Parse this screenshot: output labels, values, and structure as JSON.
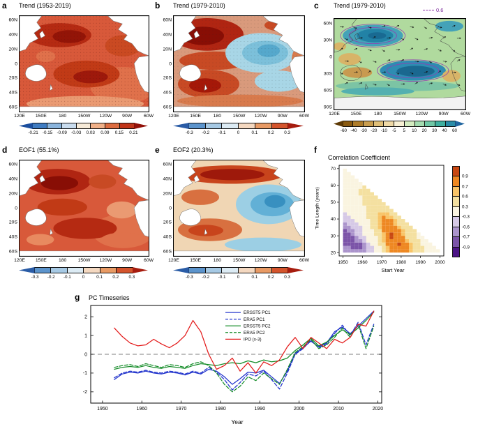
{
  "panels": {
    "a": {
      "label": "a",
      "title": "Trend (1953-2019)",
      "lat_ticks": [
        "60N",
        "40N",
        "20N",
        "0",
        "20S",
        "40S",
        "60S"
      ],
      "lon_ticks": [
        "120E",
        "150E",
        "180",
        "150W",
        "120W",
        "90W",
        "60W"
      ],
      "colorbar": {
        "orientation": "horizontal",
        "ticks": [
          "-0.21",
          "-0.15",
          "-0.09",
          "-0.03",
          "0.03",
          "0.09",
          "0.15",
          "0.21"
        ],
        "colors": [
          "#1c4f9e",
          "#3f7cc2",
          "#8ab4dc",
          "#c9dcee",
          "#f6ead8",
          "#f0b088",
          "#dc6c40",
          "#c03418",
          "#921108"
        ]
      }
    },
    "b": {
      "label": "b",
      "title": "Trend (1979-2010)",
      "lat_ticks": [
        "60N",
        "40N",
        "20N",
        "0",
        "20S",
        "40S",
        "60S"
      ],
      "lon_ticks": [
        "120E",
        "150E",
        "180",
        "150W",
        "120W",
        "90W",
        "60W"
      ],
      "colorbar": {
        "orientation": "horizontal",
        "ticks": [
          "-0.3",
          "-0.2",
          "-0.1",
          "0",
          "0.1",
          "0.2",
          "0.3"
        ],
        "colors": [
          "#2a5ca6",
          "#5c94cc",
          "#a6c9e4",
          "#dcebf4",
          "#f4d8c0",
          "#e89a64",
          "#d4542c",
          "#a61c0e"
        ]
      }
    },
    "c": {
      "label": "c",
      "title": "Trend (1979-2010)",
      "vector_scale": "0.6",
      "lat_ticks": [
        "60N",
        "30N",
        "0",
        "30S",
        "60S",
        "90S"
      ],
      "lon_ticks": [
        "120E",
        "150E",
        "180",
        "150W",
        "120W",
        "90W",
        "60W"
      ],
      "colorbar": {
        "orientation": "horizontal",
        "ticks": [
          "-60",
          "-40",
          "-30",
          "-20",
          "-10",
          "-5",
          "5",
          "10",
          "20",
          "30",
          "40",
          "60"
        ],
        "colors": [
          "#5e3a06",
          "#8a5a10",
          "#ae7c2a",
          "#c99d4e",
          "#e0bf78",
          "#efd9a6",
          "#f8f0d4",
          "#d4ecc0",
          "#a4dcb0",
          "#70c8a6",
          "#40b0a0",
          "#2a8ca8",
          "#2166a0"
        ]
      }
    },
    "d": {
      "label": "d",
      "title": "EOF1 (55.1%)",
      "lat_ticks": [
        "60N",
        "40N",
        "20N",
        "0",
        "20S",
        "40S",
        "60S"
      ],
      "lon_ticks": [
        "120E",
        "150E",
        "180",
        "150W",
        "120W",
        "90W",
        "60W"
      ],
      "colorbar": {
        "orientation": "horizontal",
        "ticks": [
          "-0.3",
          "-0.2",
          "-0.1",
          "0",
          "0.1",
          "0.2",
          "0.3"
        ],
        "colors": [
          "#2a5ca6",
          "#5c94cc",
          "#a6c9e4",
          "#dcebf4",
          "#f4d8c0",
          "#e89a64",
          "#d4542c",
          "#a61c0e"
        ]
      }
    },
    "e": {
      "label": "e",
      "title": "EOF2 (20.3%)",
      "lat_ticks": [
        "60N",
        "40N",
        "20N",
        "0",
        "20S",
        "40S",
        "60S"
      ],
      "lon_ticks": [
        "120E",
        "150E",
        "180",
        "150W",
        "120W",
        "90W",
        "60W"
      ],
      "colorbar": {
        "orientation": "horizontal",
        "ticks": [
          "-0.3",
          "-0.2",
          "-0.1",
          "0",
          "0.1",
          "0.2",
          "0.3"
        ],
        "colors": [
          "#2a5ca6",
          "#5c94cc",
          "#a6c9e4",
          "#dcebf4",
          "#f4d8c0",
          "#e89a64",
          "#d4542c",
          "#a61c0e"
        ]
      }
    },
    "f": {
      "label": "f",
      "title": "Correlation Coefficient",
      "xlabel": "Start Year",
      "ylabel": "Time Length (years)",
      "x_ticks": [
        "1950",
        "1960",
        "1970",
        "1980",
        "1990",
        "2000"
      ],
      "y_ticks": [
        "20",
        "30",
        "40",
        "50",
        "60",
        "70"
      ],
      "x_range": [
        1948,
        2002
      ],
      "y_range": [
        18,
        72
      ],
      "colorbar": {
        "orientation": "vertical",
        "ticks": [
          "0.9",
          "0.7",
          "0.6",
          "0.3",
          "-0.3",
          "-0.6",
          "-0.7",
          "-0.9"
        ],
        "colors": [
          "#c84812",
          "#ee8822",
          "#f8c468",
          "#f4e0a0",
          "#faf4e0",
          "#d6c9e6",
          "#ab94cc",
          "#7b54a8",
          "#4c1486"
        ]
      }
    },
    "g": {
      "label": "g",
      "title": "PC Timeseries",
      "xlabel": "Year",
      "x_ticks": [
        "1950",
        "1960",
        "1970",
        "1980",
        "1990",
        "2000",
        "2010",
        "2020"
      ],
      "y_ticks": [
        "2",
        "1",
        "0",
        "-1",
        "-2"
      ]
    }
  },
  "chart_data": [
    {
      "panel": "a",
      "type": "heatmap",
      "title": "Trend (1953-2019)",
      "colorbar_levels": [
        -0.21,
        -0.15,
        -0.09,
        -0.03,
        0.03,
        0.09,
        0.15,
        0.21
      ]
    },
    {
      "panel": "b",
      "type": "heatmap",
      "title": "Trend (1979-2010)",
      "colorbar_levels": [
        -0.3,
        -0.2,
        -0.1,
        0,
        0.1,
        0.2,
        0.3
      ]
    },
    {
      "panel": "c",
      "type": "heatmap",
      "title": "Trend (1979-2010)",
      "vector_scale": 0.6,
      "colorbar_levels": [
        -60,
        -40,
        -30,
        -20,
        -10,
        -5,
        5,
        10,
        20,
        30,
        40,
        60
      ]
    },
    {
      "panel": "d",
      "type": "heatmap",
      "title": "EOF1 (55.1%)",
      "colorbar_levels": [
        -0.3,
        -0.2,
        -0.1,
        0,
        0.1,
        0.2,
        0.3
      ]
    },
    {
      "panel": "e",
      "type": "heatmap",
      "title": "EOF2 (20.3%)",
      "colorbar_levels": [
        -0.3,
        -0.2,
        -0.1,
        0,
        0.1,
        0.2,
        0.3
      ]
    },
    {
      "panel": "f",
      "type": "heatmap",
      "title": "Correlation Coefficient",
      "xlabel": "Start Year",
      "ylabel": "Time Length (years)",
      "xlim": [
        1948,
        2002
      ],
      "ylim": [
        18,
        72
      ],
      "x": [
        1950,
        1955,
        1960,
        1965,
        1970,
        1975,
        1980,
        1985,
        1990,
        1995,
        2000
      ],
      "y": [
        20,
        25,
        30,
        35,
        40,
        45,
        50,
        55,
        60,
        65,
        70
      ],
      "values": [
        [
          -0.55,
          -0.65,
          -0.7,
          -0.55,
          0.3,
          0.8,
          0.9,
          0.7,
          0.5,
          0.2,
          0.1
        ],
        [
          -0.7,
          -0.8,
          -0.7,
          -0.3,
          0.5,
          0.85,
          0.92,
          0.6,
          0.3,
          0.1,
          null
        ],
        [
          -0.75,
          -0.7,
          -0.45,
          0.2,
          0.6,
          0.92,
          0.8,
          0.4,
          0.2,
          null,
          null
        ],
        [
          -0.7,
          -0.6,
          -0.25,
          0.3,
          0.7,
          0.85,
          0.6,
          0.3,
          null,
          null,
          null
        ],
        [
          -0.55,
          -0.35,
          0.1,
          0.4,
          0.75,
          0.7,
          0.4,
          null,
          null,
          null,
          null
        ],
        [
          -0.35,
          0.0,
          0.2,
          0.5,
          0.6,
          0.5,
          null,
          null,
          null,
          null,
          null
        ],
        [
          0.0,
          0.15,
          0.3,
          0.45,
          0.5,
          null,
          null,
          null,
          null,
          null,
          null
        ],
        [
          0.1,
          0.2,
          0.35,
          0.4,
          null,
          null,
          null,
          null,
          null,
          null,
          null
        ],
        [
          0.15,
          0.25,
          0.3,
          null,
          null,
          null,
          null,
          null,
          null,
          null,
          null
        ],
        [
          0.2,
          0.25,
          null,
          null,
          null,
          null,
          null,
          null,
          null,
          null,
          null
        ],
        [
          0.2,
          null,
          null,
          null,
          null,
          null,
          null,
          null,
          null,
          null,
          null
        ]
      ]
    },
    {
      "panel": "g",
      "type": "line",
      "title": "PC Timeseries",
      "xlabel": "Year",
      "xlim": [
        1947,
        2021
      ],
      "ylim": [
        -2.6,
        2.6
      ],
      "x": [
        1953,
        1955,
        1957,
        1959,
        1961,
        1963,
        1965,
        1967,
        1969,
        1971,
        1973,
        1975,
        1977,
        1979,
        1981,
        1983,
        1985,
        1987,
        1989,
        1991,
        1993,
        1995,
        1997,
        1999,
        2001,
        2003,
        2005,
        2007,
        2009,
        2011,
        2013,
        2015,
        2017,
        2019
      ],
      "series": [
        {
          "name": "ERSST5 PC1",
          "color": "#2133cc",
          "dash": false,
          "values": [
            -1.35,
            -1.05,
            -0.95,
            -1.0,
            -0.9,
            -1.0,
            -1.05,
            -0.95,
            -1.0,
            -1.1,
            -0.95,
            -1.05,
            -0.8,
            -0.9,
            -1.2,
            -1.6,
            -1.3,
            -0.95,
            -1.0,
            -0.85,
            -1.2,
            -1.55,
            -0.9,
            0.05,
            0.35,
            0.7,
            0.4,
            0.6,
            1.2,
            1.45,
            1.1,
            1.5,
            1.9,
            2.3
          ]
        },
        {
          "name": "ERA5 PC1",
          "color": "#2133cc",
          "dash": true,
          "values": [
            -1.25,
            -1.0,
            -0.9,
            -0.95,
            -0.85,
            -0.95,
            -1.0,
            -0.9,
            -0.95,
            -1.05,
            -0.9,
            -1.0,
            -0.7,
            -0.95,
            -1.35,
            -1.9,
            -1.5,
            -1.05,
            -1.15,
            -0.9,
            -1.35,
            -1.85,
            -1.0,
            0.0,
            0.3,
            0.75,
            0.35,
            0.55,
            1.1,
            1.55,
            1.0,
            1.7,
            0.5,
            1.6
          ]
        },
        {
          "name": "ERSST5 PC2",
          "color": "#148c28",
          "dash": false,
          "values": [
            -0.8,
            -0.7,
            -0.65,
            -0.7,
            -0.6,
            -0.7,
            -0.75,
            -0.65,
            -0.7,
            -0.75,
            -0.6,
            -0.5,
            -0.55,
            -0.6,
            -0.5,
            -0.45,
            -0.5,
            -0.35,
            -0.45,
            -0.3,
            -0.4,
            -0.35,
            -0.2,
            0.2,
            0.5,
            0.85,
            0.45,
            0.65,
            1.0,
            1.3,
            1.05,
            1.4,
            1.8,
            2.25
          ]
        },
        {
          "name": "ERA5 PC2",
          "color": "#148c28",
          "dash": true,
          "values": [
            -0.7,
            -0.6,
            -0.55,
            -0.65,
            -0.5,
            -0.6,
            -0.7,
            -0.55,
            -0.6,
            -0.7,
            -0.5,
            -0.4,
            -0.6,
            -1.0,
            -1.6,
            -2.0,
            -1.7,
            -1.2,
            -1.4,
            -1.0,
            -1.3,
            -1.6,
            -0.8,
            0.1,
            0.4,
            0.8,
            0.3,
            0.5,
            0.9,
            1.4,
            0.9,
            1.6,
            0.3,
            1.5
          ]
        },
        {
          "name": "IPO (x-3)",
          "color": "#e31a1a",
          "dash": false,
          "values": [
            1.4,
            0.95,
            0.6,
            0.45,
            0.5,
            0.8,
            0.55,
            0.35,
            0.6,
            1.0,
            1.8,
            1.2,
            0.0,
            -0.8,
            -0.6,
            -0.2,
            -0.9,
            -0.45,
            -1.0,
            -0.4,
            -0.6,
            -0.3,
            0.4,
            0.9,
            0.3,
            0.9,
            0.6,
            0.3,
            0.8,
            0.6,
            0.9,
            1.6,
            1.5,
            2.3
          ]
        }
      ]
    }
  ]
}
